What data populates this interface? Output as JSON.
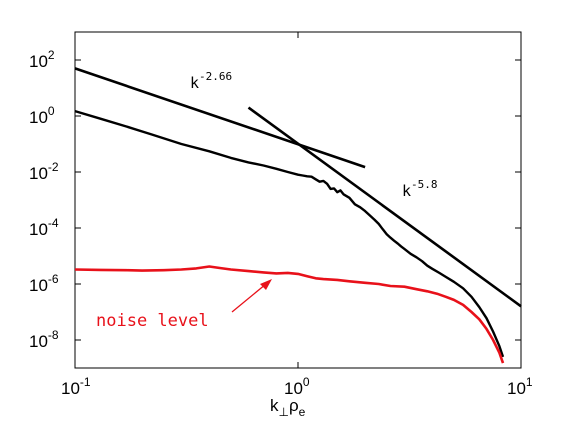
{
  "chart_data": {
    "type": "line",
    "title": "",
    "x_scale": "log",
    "y_scale": "log",
    "xlim": [
      0.1,
      10
    ],
    "ylim": [
      1e-09,
      1000
    ],
    "x_ticks": [
      {
        "value": 0.1,
        "base": "10",
        "exp": "-1"
      },
      {
        "value": 1,
        "base": "10",
        "exp": "0"
      },
      {
        "value": 10,
        "base": "10",
        "exp": "1"
      }
    ],
    "y_ticks": [
      {
        "value": 1e-08,
        "base": "10",
        "exp": "-8"
      },
      {
        "value": 1e-06,
        "base": "10",
        "exp": "-6"
      },
      {
        "value": 0.0001,
        "base": "10",
        "exp": "-4"
      },
      {
        "value": 0.01,
        "base": "10",
        "exp": "-2"
      },
      {
        "value": 1,
        "base": "10",
        "exp": "0"
      },
      {
        "value": 100,
        "base": "10",
        "exp": "2"
      }
    ],
    "xlabel": {
      "main": "k",
      "sub1": "⊥",
      "mid": "ρ",
      "sub2": "e"
    },
    "ylabel": "",
    "grid": false,
    "colors": {
      "spectrum": "#000000",
      "noise": "#e8111a",
      "fits": "#000000"
    },
    "series": [
      {
        "values": [
          [
            0.1,
            1.5
          ],
          [
            0.13,
            0.8
          ],
          [
            0.17,
            0.42
          ],
          [
            0.22,
            0.22
          ],
          [
            0.3,
            0.1
          ],
          [
            0.4,
            0.055
          ],
          [
            0.5,
            0.032
          ],
          [
            0.6,
            0.022
          ],
          [
            0.7,
            0.017
          ],
          [
            0.8,
            0.013
          ],
          [
            0.9,
            0.01
          ],
          [
            1.0,
            0.008
          ],
          [
            1.05,
            0.0075
          ],
          [
            1.1,
            0.007
          ],
          [
            1.15,
            0.0068
          ],
          [
            1.2,
            0.0055
          ],
          [
            1.25,
            0.0045
          ],
          [
            1.3,
            0.0048
          ],
          [
            1.35,
            0.0038
          ],
          [
            1.4,
            0.0025
          ],
          [
            1.45,
            0.0026
          ],
          [
            1.5,
            0.0019
          ],
          [
            1.55,
            0.0022
          ],
          [
            1.6,
            0.0016
          ],
          [
            1.7,
            0.0012
          ],
          [
            1.8,
            0.0007
          ],
          [
            1.9,
            0.00055
          ],
          [
            2.0,
            0.0004
          ],
          [
            2.1,
            0.00028
          ],
          [
            2.2,
            0.0002
          ],
          [
            2.3,
            0.00014
          ],
          [
            2.4,
            9e-05
          ],
          [
            2.5,
            6e-05
          ],
          [
            2.6,
            4.5e-05
          ],
          [
            2.7,
            3.5e-05
          ],
          [
            2.8,
            2.8e-05
          ],
          [
            2.9,
            2.2e-05
          ],
          [
            3.0,
            1.8e-05
          ],
          [
            3.2,
            1.2e-05
          ],
          [
            3.4,
            9e-06
          ],
          [
            3.6,
            6.5e-06
          ],
          [
            3.8,
            4.5e-06
          ],
          [
            4.0,
            3.5e-06
          ],
          [
            4.3,
            2.5e-06
          ],
          [
            4.6,
            1.8e-06
          ],
          [
            5.0,
            1.2e-06
          ],
          [
            5.5,
            7e-07
          ],
          [
            6.0,
            3.5e-07
          ],
          [
            6.5,
            1.5e-07
          ],
          [
            7.0,
            6e-08
          ],
          [
            7.5,
            2e-08
          ],
          [
            8.0,
            6e-09
          ],
          [
            8.3,
            2.5e-09
          ]
        ]
      },
      {
        "label": "noise level",
        "values": [
          [
            0.1,
            3.3e-06
          ],
          [
            0.13,
            3.2e-06
          ],
          [
            0.17,
            3.1e-06
          ],
          [
            0.2,
            3e-06
          ],
          [
            0.25,
            3.1e-06
          ],
          [
            0.3,
            3.3e-06
          ],
          [
            0.35,
            3.6e-06
          ],
          [
            0.4,
            4.2e-06
          ],
          [
            0.45,
            3.7e-06
          ],
          [
            0.5,
            3.3e-06
          ],
          [
            0.6,
            2.9e-06
          ],
          [
            0.7,
            2.6e-06
          ],
          [
            0.8,
            2.4e-06
          ],
          [
            0.9,
            2.5e-06
          ],
          [
            1.0,
            2.3e-06
          ],
          [
            1.1,
            1.9e-06
          ],
          [
            1.2,
            1.6e-06
          ],
          [
            1.3,
            1.5e-06
          ],
          [
            1.5,
            1.4e-06
          ],
          [
            1.7,
            1.25e-06
          ],
          [
            2.0,
            1.1e-06
          ],
          [
            2.3,
            1e-06
          ],
          [
            2.6,
            8.5e-07
          ],
          [
            3.0,
            8e-07
          ],
          [
            3.4,
            6.5e-07
          ],
          [
            3.8,
            5.5e-07
          ],
          [
            4.2,
            4.5e-07
          ],
          [
            4.6,
            3.5e-07
          ],
          [
            5.0,
            2.7e-07
          ],
          [
            5.5,
            1.8e-07
          ],
          [
            6.0,
            1e-07
          ],
          [
            6.5,
            5.5e-08
          ],
          [
            7.0,
            2.5e-08
          ],
          [
            7.5,
            1e-08
          ],
          [
            8.0,
            3.5e-09
          ],
          [
            8.3,
            1.5e-09
          ]
        ]
      },
      {
        "label": "k^{-2.66}",
        "values": [
          [
            0.1,
            50
          ],
          [
            2.0,
            0.015
          ]
        ]
      },
      {
        "label": "k^{-5.8}",
        "values": [
          [
            0.6,
            2.0
          ],
          [
            10,
            1.6e-07
          ]
        ]
      }
    ],
    "annotations": {
      "fit1": {
        "base": "k",
        "exp": "-2.66"
      },
      "fit2": {
        "base": "k",
        "exp": "-5.8"
      },
      "noise": {
        "text": "noise level"
      }
    }
  }
}
